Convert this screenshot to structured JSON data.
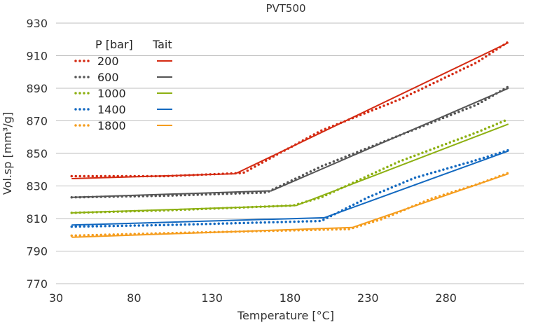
{
  "chart_data": {
    "type": "line",
    "title": "PVT500",
    "xlabel": "Temperature [°C]",
    "ylabel": "Vol.sp [mm³/g]",
    "xlim": [
      30,
      330
    ],
    "ylim": [
      770,
      930
    ],
    "xticks": [
      30,
      80,
      130,
      180,
      230,
      280
    ],
    "yticks": [
      770,
      790,
      810,
      830,
      850,
      870,
      890,
      910,
      930
    ],
    "grid": "horizontal",
    "legend": {
      "position": "top-left",
      "header_measured": "P [bar]",
      "header_model": "Tait"
    },
    "series": [
      {
        "name": "200",
        "color": "#d42a12",
        "measured": {
          "x": [
            40,
            100,
            150,
            200,
            250,
            300,
            320
          ],
          "y": [
            836,
            836,
            838,
            864,
            883,
            906,
            918.5
          ]
        },
        "tait": {
          "x": [
            40,
            145,
            320
          ],
          "y": [
            834.5,
            837.5,
            918
          ]
        }
      },
      {
        "name": "600",
        "color": "#555555",
        "measured": {
          "x": [
            40,
            100,
            165,
            200,
            250,
            300,
            320
          ],
          "y": [
            823,
            824,
            826,
            842,
            861,
            880,
            891
          ]
        },
        "tait": {
          "x": [
            40,
            168,
            320
          ],
          "y": [
            823,
            827,
            890
          ]
        }
      },
      {
        "name": "1000",
        "color": "#8db012",
        "measured": {
          "x": [
            40,
            100,
            182,
            200,
            250,
            300,
            320
          ],
          "y": [
            813.5,
            815,
            818,
            823,
            845,
            863,
            871
          ]
        },
        "tait": {
          "x": [
            40,
            184,
            320
          ],
          "y": [
            813.5,
            818,
            868
          ]
        }
      },
      {
        "name": "1400",
        "color": "#1369c0",
        "measured": {
          "x": [
            40,
            100,
            200,
            230,
            260,
            300,
            320
          ],
          "y": [
            805,
            806,
            808.5,
            823,
            835,
            846,
            852
          ]
        },
        "tait": {
          "x": [
            40,
            202,
            320
          ],
          "y": [
            806,
            810.5,
            851.5
          ]
        }
      },
      {
        "name": "1800",
        "color": "#f59d1e",
        "measured": {
          "x": [
            40,
            100,
            218,
            240,
            270,
            300,
            320
          ],
          "y": [
            799.5,
            801,
            803.5,
            810,
            822,
            831,
            838
          ]
        },
        "tait": {
          "x": [
            40,
            220,
            320
          ],
          "y": [
            798.5,
            804.5,
            837.5
          ]
        }
      }
    ]
  }
}
